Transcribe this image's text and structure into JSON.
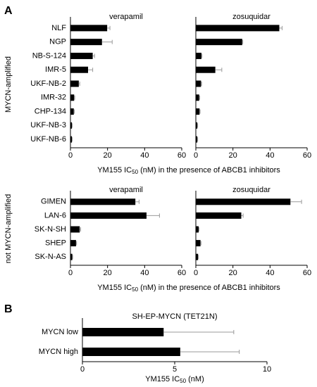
{
  "chart_data": [
    {
      "type": "bar",
      "orientation": "horizontal",
      "panel": "A",
      "ylabel": "MYCN-amplified",
      "xlabel": [
        "YM155 IC",
        "50",
        " (nM) in the presence of ABCB1 inhibitors"
      ],
      "categories": [
        "NLF",
        "NGP",
        "NB-S-124",
        "IMR-5",
        "UKF-NB-2",
        "IMR-32",
        "CHP-134",
        "UKF-NB-3",
        "UKF-NB-6"
      ],
      "series": [
        {
          "name": "verapamil",
          "color": "#000000",
          "values": [
            19.8,
            17,
            12,
            9.5,
            4.5,
            2,
            1.8,
            0.8,
            0.8
          ],
          "errors": [
            1.5,
            5.5,
            1,
            2.5,
            0.5,
            0.3,
            0.3,
            0.2,
            0.2
          ]
        },
        {
          "name": "zosuquidar",
          "color": "#000000",
          "values": [
            45,
            25,
            3,
            10.5,
            2.8,
            1.8,
            2,
            0.8,
            0.8
          ],
          "errors": [
            1.5,
            0.3,
            0.3,
            3.5,
            0.3,
            0.3,
            0.3,
            0.2,
            0.2
          ]
        }
      ],
      "xlim": [
        0,
        60
      ],
      "xticks": [
        0,
        20,
        40,
        60
      ],
      "error_color": "#999999"
    },
    {
      "type": "bar",
      "orientation": "horizontal",
      "ylabel": "not MYCN-amplified",
      "xlabel": [
        "YM155 IC",
        "50",
        " (nM) in the presence of ABCB1 inhibitors"
      ],
      "categories": [
        "GIMEN",
        "LAN-6",
        "SK-N-SH",
        "SHEP",
        "SK-N-AS"
      ],
      "series": [
        {
          "name": "verapamil",
          "color": "#000000",
          "values": [
            35,
            41,
            5,
            3,
            1
          ],
          "errors": [
            2,
            7,
            0.5,
            0.3,
            0.2
          ]
        },
        {
          "name": "zosuquidar",
          "color": "#000000",
          "values": [
            51,
            24.5,
            1.5,
            2.5,
            1.2
          ],
          "errors": [
            6,
            1,
            0.2,
            0.3,
            0.2
          ]
        }
      ],
      "xlim": [
        0,
        60
      ],
      "xticks": [
        0,
        20,
        40,
        60
      ],
      "error_color": "#999999"
    },
    {
      "type": "bar",
      "orientation": "horizontal",
      "panel": "B",
      "title": "SH-EP-MYCN (TET21N)",
      "xlabel": [
        "YM155 IC",
        "50",
        " (nM)"
      ],
      "categories": [
        "MYCN low",
        "MYCN high"
      ],
      "series": [
        {
          "color": "#000000",
          "values": [
            4.4,
            5.3
          ],
          "errors": [
            3.8,
            3.2
          ]
        }
      ],
      "xlim": [
        0,
        10
      ],
      "xticks": [
        0,
        5,
        10
      ],
      "error_color": "#999999"
    }
  ]
}
